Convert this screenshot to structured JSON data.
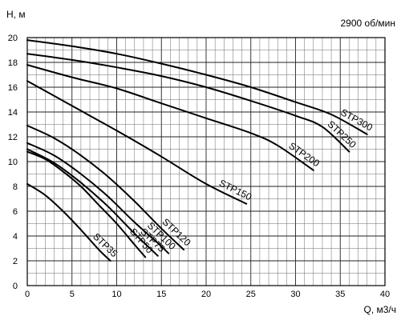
{
  "chart_data": {
    "type": "line",
    "annotation": "2900 об/мин",
    "ylabel": "Н, м",
    "xlabel": "Q, м3/ч",
    "xlim": [
      0,
      40
    ],
    "ylim": [
      0,
      20
    ],
    "x_ticks": [
      0,
      5,
      10,
      15,
      20,
      25,
      30,
      35,
      40
    ],
    "y_ticks": [
      0,
      2,
      4,
      6,
      8,
      10,
      12,
      14,
      16,
      18,
      20
    ],
    "x_minor_step": 1,
    "y_minor_step": 1,
    "grid": true,
    "series": [
      {
        "name": "STP35",
        "x": [
          0,
          2,
          4,
          6,
          8,
          9.3
        ],
        "y": [
          8.2,
          7.3,
          6.0,
          4.5,
          2.9,
          2.0
        ]
      },
      {
        "name": "STP50",
        "x": [
          0,
          2,
          4,
          6,
          8,
          10,
          12,
          13.2
        ],
        "y": [
          10.8,
          10.2,
          9.2,
          8.0,
          6.5,
          5.0,
          3.3,
          2.3
        ]
      },
      {
        "name": "STP75",
        "x": [
          0,
          3,
          6,
          9,
          12,
          14.6
        ],
        "y": [
          11.0,
          9.9,
          8.3,
          6.4,
          4.2,
          2.4
        ]
      },
      {
        "name": "STP100",
        "x": [
          0,
          3,
          6,
          9,
          12,
          14.5,
          15.8
        ],
        "y": [
          11.5,
          10.5,
          9.0,
          7.2,
          5.1,
          3.5,
          2.6
        ]
      },
      {
        "name": "STP120",
        "x": [
          0,
          3,
          6,
          9,
          12,
          15,
          17.5
        ],
        "y": [
          12.9,
          11.9,
          10.5,
          8.8,
          6.8,
          4.6,
          2.9
        ]
      },
      {
        "name": "STP150",
        "x": [
          0,
          5,
          10,
          15,
          20,
          24.5
        ],
        "y": [
          16.5,
          14.5,
          12.5,
          10.4,
          8.2,
          6.6
        ]
      },
      {
        "name": "STP200",
        "x": [
          0,
          5,
          10,
          15,
          20,
          25,
          28,
          32
        ],
        "y": [
          17.8,
          16.8,
          15.9,
          14.7,
          13.5,
          12.3,
          11.3,
          9.3
        ]
      },
      {
        "name": "STP250",
        "x": [
          0,
          5,
          10,
          15,
          20,
          25,
          30,
          33,
          36
        ],
        "y": [
          18.7,
          18.2,
          17.6,
          16.9,
          16.0,
          14.9,
          13.7,
          12.8,
          10.8
        ]
      },
      {
        "name": "STP300",
        "x": [
          0,
          5,
          10,
          15,
          20,
          25,
          30,
          34,
          38
        ],
        "y": [
          19.8,
          19.3,
          18.7,
          17.9,
          17.0,
          16.0,
          14.8,
          13.8,
          12.2
        ]
      }
    ]
  }
}
